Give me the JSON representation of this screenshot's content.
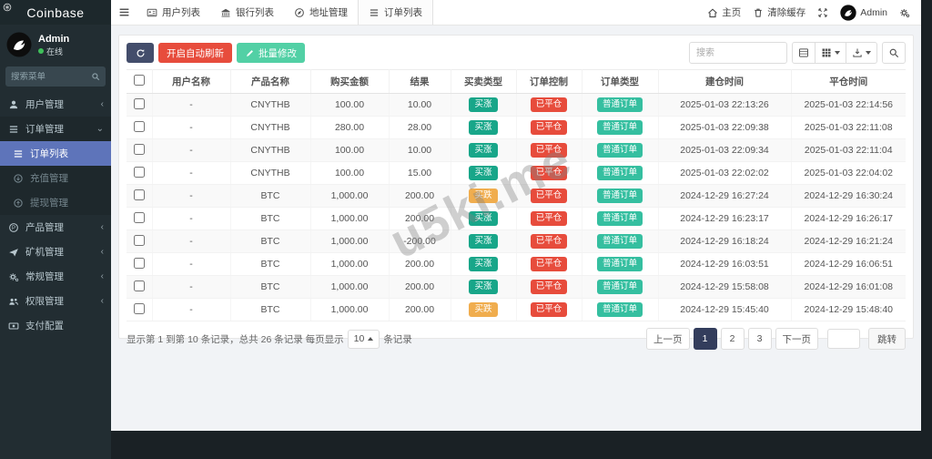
{
  "brand": {
    "name": "Coinbase"
  },
  "user_panel": {
    "name": "Admin",
    "status": "在线"
  },
  "sidebar": {
    "search_placeholder": "搜索菜单",
    "items": [
      {
        "label": "用户管理",
        "icon": "user-icon",
        "chevron": "left",
        "level": "top"
      },
      {
        "label": "订单管理",
        "icon": "orders-icon",
        "chevron": "down",
        "level": "top",
        "open": true
      },
      {
        "label": "订单列表",
        "icon": "list-icon",
        "level": "child",
        "active": true
      },
      {
        "label": "充值管理",
        "icon": "recharge-icon",
        "level": "child",
        "dim": true
      },
      {
        "label": "提现管理",
        "icon": "withdraw-icon",
        "level": "child",
        "dim": true
      },
      {
        "label": "产品管理",
        "icon": "product-icon",
        "chevron": "left",
        "level": "top"
      },
      {
        "label": "矿机管理",
        "icon": "miner-icon",
        "chevron": "left",
        "level": "top"
      },
      {
        "label": "常规管理",
        "icon": "settings-icon",
        "chevron": "left",
        "level": "top"
      },
      {
        "label": "权限管理",
        "icon": "permissions-icon",
        "chevron": "left",
        "level": "top"
      },
      {
        "label": "支付配置",
        "icon": "payment-icon",
        "level": "top"
      }
    ]
  },
  "navbar": {
    "tabs": [
      {
        "label": "用户列表",
        "icon": "id-card-icon"
      },
      {
        "label": "银行列表",
        "icon": "bank-icon"
      },
      {
        "label": "地址管理",
        "icon": "location-icon"
      },
      {
        "label": "订单列表",
        "icon": "list-icon",
        "active": true
      }
    ],
    "right": {
      "home": "主页",
      "clear_cache": "清除缓存",
      "username": "Admin"
    }
  },
  "toolbar": {
    "auto_refresh_label": "开启自动刷新",
    "batch_edit_label": "批量修改",
    "search_placeholder": "搜索"
  },
  "table": {
    "headers": [
      "用户名称",
      "产品名称",
      "购买金额",
      "结果",
      "买卖类型",
      "订单控制",
      "订单类型",
      "建仓时间",
      "平仓时间"
    ],
    "rows": [
      {
        "user": "-",
        "product": "CNYTHB",
        "amount": "100.00",
        "result": "10.00",
        "side": "买涨",
        "side_color": "green",
        "control": "已平仓",
        "type": "普通订单",
        "open": "2025-01-03 22:13:26",
        "close": "2025-01-03 22:14:56"
      },
      {
        "user": "-",
        "product": "CNYTHB",
        "amount": "280.00",
        "result": "28.00",
        "side": "买涨",
        "side_color": "green",
        "control": "已平仓",
        "type": "普通订单",
        "open": "2025-01-03 22:09:38",
        "close": "2025-01-03 22:11:08"
      },
      {
        "user": "-",
        "product": "CNYTHB",
        "amount": "100.00",
        "result": "10.00",
        "side": "买涨",
        "side_color": "green",
        "control": "已平仓",
        "type": "普通订单",
        "open": "2025-01-03 22:09:34",
        "close": "2025-01-03 22:11:04"
      },
      {
        "user": "-",
        "product": "CNYTHB",
        "amount": "100.00",
        "result": "15.00",
        "side": "买涨",
        "side_color": "green",
        "control": "已平仓",
        "type": "普通订单",
        "open": "2025-01-03 22:02:02",
        "close": "2025-01-03 22:04:02"
      },
      {
        "user": "-",
        "product": "BTC",
        "amount": "1,000.00",
        "result": "200.00",
        "side": "买跌",
        "side_color": "orange",
        "control": "已平仓",
        "type": "普通订单",
        "open": "2024-12-29 16:27:24",
        "close": "2024-12-29 16:30:24"
      },
      {
        "user": "-",
        "product": "BTC",
        "amount": "1,000.00",
        "result": "200.00",
        "side": "买涨",
        "side_color": "green",
        "control": "已平仓",
        "type": "普通订单",
        "open": "2024-12-29 16:23:17",
        "close": "2024-12-29 16:26:17"
      },
      {
        "user": "-",
        "product": "BTC",
        "amount": "1,000.00",
        "result": "-200.00",
        "side": "买涨",
        "side_color": "green",
        "control": "已平仓",
        "type": "普通订单",
        "open": "2024-12-29 16:18:24",
        "close": "2024-12-29 16:21:24"
      },
      {
        "user": "-",
        "product": "BTC",
        "amount": "1,000.00",
        "result": "200.00",
        "side": "买涨",
        "side_color": "green",
        "control": "已平仓",
        "type": "普通订单",
        "open": "2024-12-29 16:03:51",
        "close": "2024-12-29 16:06:51"
      },
      {
        "user": "-",
        "product": "BTC",
        "amount": "1,000.00",
        "result": "200.00",
        "side": "买涨",
        "side_color": "green",
        "control": "已平仓",
        "type": "普通订单",
        "open": "2024-12-29 15:58:08",
        "close": "2024-12-29 16:01:08"
      },
      {
        "user": "-",
        "product": "BTC",
        "amount": "1,000.00",
        "result": "200.00",
        "side": "买跌",
        "side_color": "orange",
        "control": "已平仓",
        "type": "普通订单",
        "open": "2024-12-29 15:45:40",
        "close": "2024-12-29 15:48:40"
      }
    ]
  },
  "footer": {
    "info_prefix": "显示第 1 到第 10 条记录，总共 26 条记录 每页显示",
    "page_size": "10",
    "info_suffix": "条记录"
  },
  "pagination": {
    "prev": "上一页",
    "pages": [
      "1",
      "2",
      "3"
    ],
    "active": "1",
    "next": "下一页",
    "jump_label": "跳转"
  },
  "watermark": "u5ki.me",
  "colors": {
    "active_blue": "#5e74ba",
    "red": "#e74c3c",
    "green": "#18a689",
    "teal": "#35bfa0",
    "mint": "#52d0a5",
    "orange": "#f0ad4e",
    "navy": "#434d6b",
    "pagination_navy": "#333d5c"
  }
}
